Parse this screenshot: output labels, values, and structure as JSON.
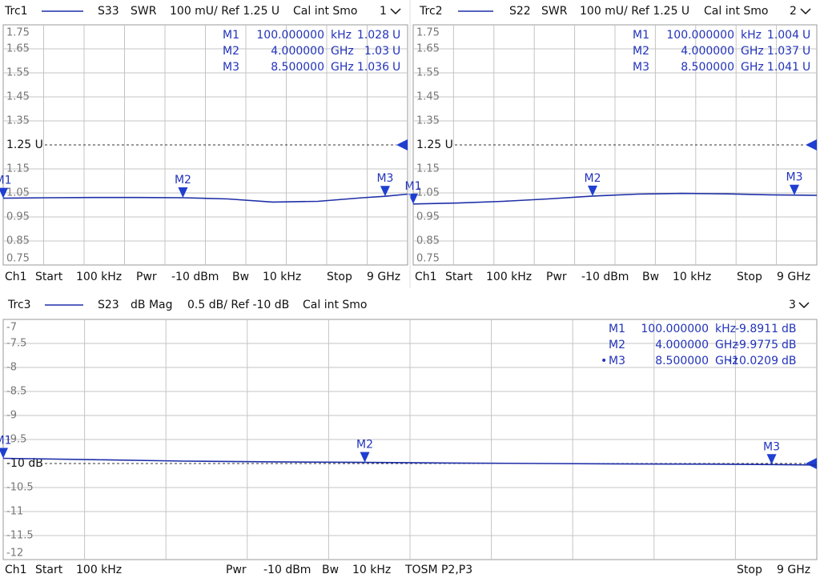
{
  "chart_data": [
    {
      "type": "line",
      "header": [
        "Trc1",
        "S33",
        "SWR",
        "100 mU/ Ref 1.25 U",
        "Cal int Smo",
        "1"
      ],
      "footer": [
        "Ch1",
        "Start",
        "100 kHz",
        "Pwr",
        "-10 dBm",
        "Bw",
        "10 kHz",
        "Stop",
        "9 GHz"
      ],
      "color": "#1f2fa8",
      "xlim": [
        0.0001,
        9
      ],
      "ylim": [
        0.75,
        1.75
      ],
      "yticks": [
        1.75,
        1.65,
        1.55,
        1.45,
        1.35,
        {
          "value": 1.25,
          "label": "1.25 U"
        },
        1.15,
        1.05,
        0.95,
        0.85,
        0.75
      ],
      "x": [
        0.0001,
        1,
        2,
        3,
        4,
        5,
        6,
        7,
        8,
        8.5,
        9
      ],
      "values": [
        1.028,
        1.03,
        1.031,
        1.031,
        1.03,
        1.025,
        1.012,
        1.015,
        1.03,
        1.036,
        1.045
      ],
      "markers": [
        {
          "name": "M1",
          "x": 0.0001,
          "x_label": "100.000000",
          "x_unit": "kHz",
          "value": 1.028,
          "unit": "U"
        },
        {
          "name": "M2",
          "x": 4,
          "x_label": "4.000000",
          "x_unit": "GHz",
          "value": 1.03,
          "unit": "U"
        },
        {
          "name": "M3",
          "x": 8.5,
          "x_label": "8.500000",
          "x_unit": "GHz",
          "value": 1.036,
          "unit": "U"
        }
      ]
    },
    {
      "type": "line",
      "header": [
        "Trc2",
        "S22",
        "SWR",
        "100 mU/ Ref 1.25 U",
        "Cal int Smo",
        "2"
      ],
      "footer": [
        "Ch1",
        "Start",
        "100 kHz",
        "Pwr",
        "-10 dBm",
        "Bw",
        "10 kHz",
        "Stop",
        "9 GHz"
      ],
      "color": "#1f2fa8",
      "xlim": [
        0.0001,
        9
      ],
      "ylim": [
        0.75,
        1.75
      ],
      "yticks": [
        1.75,
        1.65,
        1.55,
        1.45,
        1.35,
        {
          "value": 1.25,
          "label": "1.25 U"
        },
        1.15,
        1.05,
        0.95,
        0.85,
        0.75
      ],
      "x": [
        0.0001,
        1,
        2,
        3,
        4,
        5,
        6,
        7,
        8,
        8.5,
        9
      ],
      "values": [
        1.004,
        1.008,
        1.015,
        1.025,
        1.037,
        1.045,
        1.048,
        1.046,
        1.042,
        1.041,
        1.04
      ],
      "markers": [
        {
          "name": "M1",
          "x": 0.0001,
          "x_label": "100.000000",
          "x_unit": "kHz",
          "value": 1.004,
          "unit": "U"
        },
        {
          "name": "M2",
          "x": 4,
          "x_label": "4.000000",
          "x_unit": "GHz",
          "value": 1.037,
          "unit": "U"
        },
        {
          "name": "M3",
          "x": 8.5,
          "x_label": "8.500000",
          "x_unit": "GHz",
          "value": 1.041,
          "unit": "U"
        }
      ]
    },
    {
      "type": "line",
      "header": [
        "Trc3",
        "S23",
        "dB Mag",
        "0.5 dB/ Ref -10 dB",
        "Cal int Smo",
        "3"
      ],
      "footer": [
        "Ch1",
        "Start",
        "100 kHz",
        "Pwr",
        "-10 dBm",
        "Bw",
        "10 kHz",
        "TOSM P2,P3",
        "Stop",
        "9 GHz"
      ],
      "color": "#1f2fa8",
      "xlim": [
        0.0001,
        9
      ],
      "ylim": [
        -12,
        -7
      ],
      "yticks": [
        -7,
        -7.5,
        -8,
        -8.5,
        -9,
        -9.5,
        {
          "value": -10,
          "label": "-10 dB"
        },
        -10.5,
        -11,
        -11.5,
        -12
      ],
      "x": [
        0.0001,
        1,
        2,
        3,
        4,
        5,
        6,
        7,
        8,
        8.5,
        9
      ],
      "values": [
        -9.8911,
        -9.92,
        -9.95,
        -9.965,
        -9.9775,
        -9.99,
        -10.0,
        -10.01,
        -10.015,
        -10.0209,
        -10.03
      ],
      "markers": [
        {
          "name": "M1",
          "x": 0.0001,
          "x_label": "100.000000",
          "x_unit": "kHz",
          "value": -9.8911,
          "unit": "dB"
        },
        {
          "name": "M2",
          "x": 4,
          "x_label": "4.000000",
          "x_unit": "GHz",
          "value": -9.9775,
          "unit": "dB"
        },
        {
          "name": "M3",
          "x": 8.5,
          "x_label": "8.500000",
          "x_unit": "GHz",
          "value": -10.0209,
          "unit": "dB"
        }
      ]
    }
  ]
}
